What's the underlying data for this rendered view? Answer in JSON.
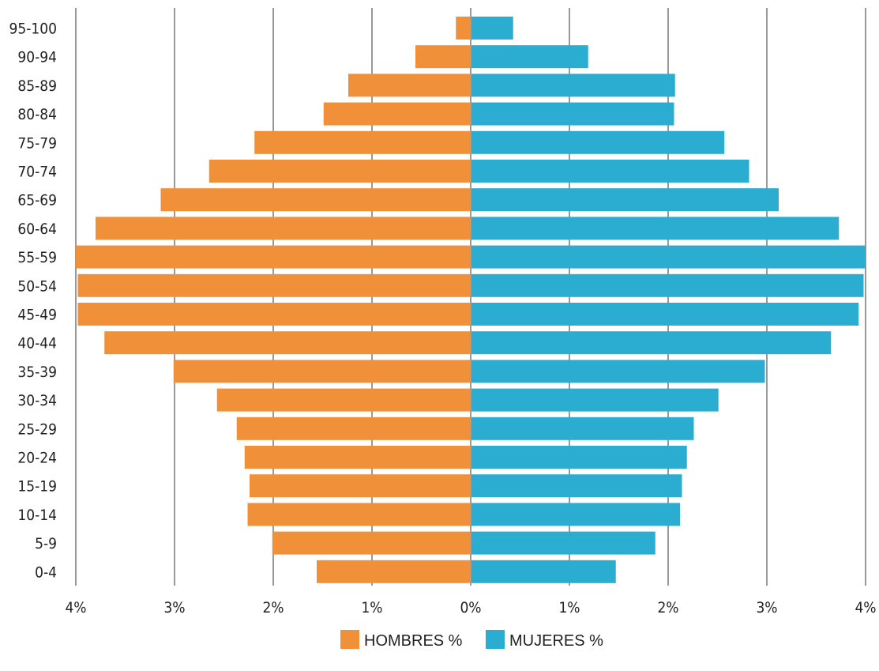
{
  "chart_data": {
    "type": "bar",
    "orientation": "horizontal-population-pyramid",
    "categories": [
      "95-100",
      "90-94",
      "85-89",
      "80-84",
      "75-79",
      "70-74",
      "65-69",
      "60-64",
      "55-59",
      "50-54",
      "45-49",
      "40-44",
      "35-39",
      "30-34",
      "25-29",
      "20-24",
      "15-19",
      "10-14",
      "5-9",
      "0-4"
    ],
    "series": [
      {
        "name": "HOMBRES %",
        "color": "#F0913A",
        "side": "left",
        "values": [
          0.15,
          0.56,
          1.24,
          1.49,
          2.19,
          2.65,
          3.14,
          3.8,
          4.0,
          3.98,
          3.98,
          3.71,
          3.01,
          2.57,
          2.37,
          2.29,
          2.24,
          2.26,
          2.01,
          1.56
        ]
      },
      {
        "name": "MUJERES %",
        "color": "#2BADD1",
        "side": "right",
        "values": [
          0.43,
          1.19,
          2.07,
          2.06,
          2.57,
          2.82,
          3.12,
          3.73,
          4.0,
          3.98,
          3.93,
          3.65,
          2.98,
          2.51,
          2.26,
          2.19,
          2.14,
          2.12,
          1.87,
          1.47
        ]
      }
    ],
    "x_ticks": [
      "4%",
      "3%",
      "2%",
      "1%",
      "0%",
      "1%",
      "2%",
      "3%",
      "4%"
    ],
    "xlim": [
      -4,
      4
    ],
    "grid": true,
    "legend_position": "bottom-center",
    "title": "",
    "xlabel": "",
    "ylabel": ""
  }
}
